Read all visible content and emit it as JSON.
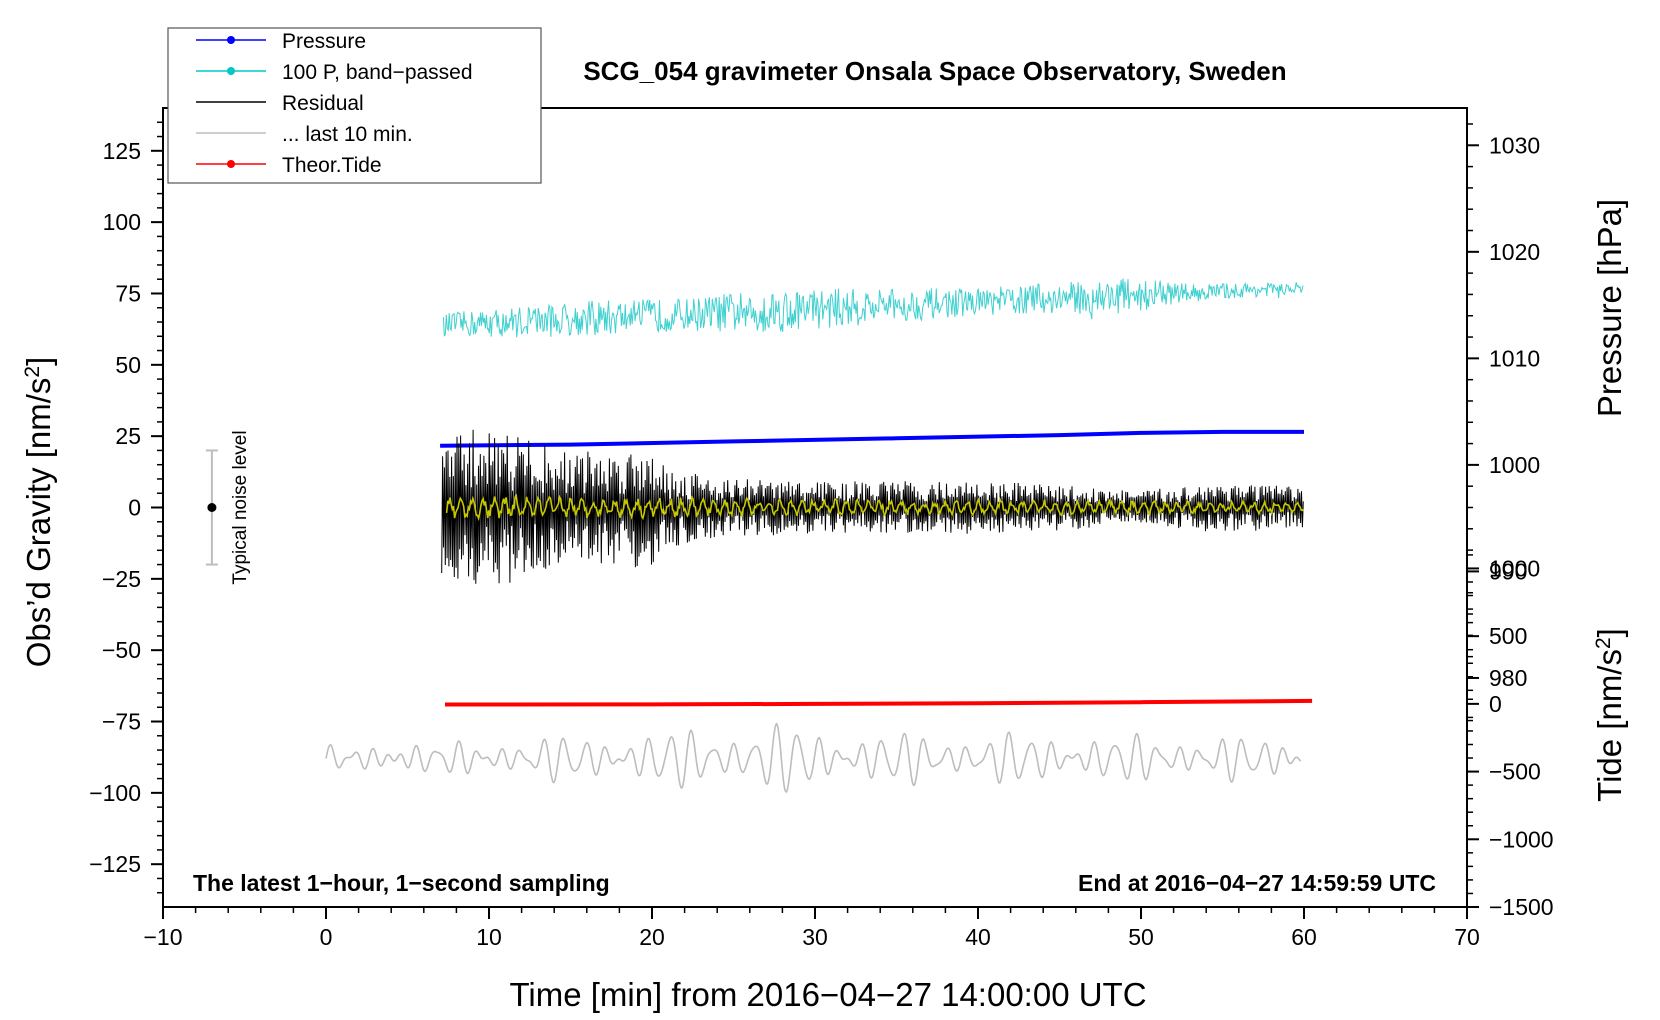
{
  "chart_data": {
    "type": "line",
    "title": "SCG_054 gravimeter Onsala Space Observatory, Sweden",
    "xlabel": "Time [min] from 2016−04−27 14:00:00 UTC",
    "ylabel_left": "Obs’d Gravity [nm/s",
    "ylabel_left_sup": "2",
    "ylabel_left_close": "]",
    "ylabel_right_pressure": "Pressure [hPa]",
    "ylabel_right_tide": "Tide [nm/s",
    "ylabel_right_tide_sup": "2",
    "ylabel_right_tide_close": "]",
    "xlim": [
      -10,
      70
    ],
    "ylim_left": [
      -140,
      140
    ],
    "ylim_pressure": [
      958.5,
      1033.5
    ],
    "ylim_tide": [
      -1500,
      4400
    ],
    "x_ticks": [
      "−10",
      "0",
      "10",
      "20",
      "30",
      "40",
      "50",
      "60",
      "70"
    ],
    "x_tick_values": [
      -10,
      0,
      10,
      20,
      30,
      40,
      50,
      60,
      70
    ],
    "y_left_ticks": [
      "125",
      "100",
      "75",
      "50",
      "25",
      "0",
      "−25",
      "−50",
      "−75",
      "−100",
      "−125"
    ],
    "y_left_tick_values": [
      125,
      100,
      75,
      50,
      25,
      0,
      -25,
      -50,
      -75,
      -100,
      -125
    ],
    "pressure_ticks": [
      "1030",
      "1020",
      "1010",
      "1000",
      "990",
      "980"
    ],
    "pressure_tick_values": [
      1030,
      1020,
      1010,
      1000,
      990,
      980
    ],
    "tide_ticks": [
      "1000",
      "500",
      "0",
      "−500",
      "−1000",
      "−1500"
    ],
    "tide_tick_values": [
      1000,
      500,
      0,
      -500,
      -1000,
      -1500
    ],
    "legend": [
      {
        "label": "Pressure",
        "color": "#0000ff",
        "marker": true
      },
      {
        "label": "100 P, band−passed",
        "color": "#00c8c8",
        "marker": true
      },
      {
        "label": "Residual",
        "color": "#000000",
        "marker": false
      },
      {
        "label": "... last 10 min.",
        "color": "#bdbdbd",
        "marker": false
      },
      {
        "label": "Theor.Tide",
        "color": "#ff0000",
        "marker": true
      }
    ],
    "noise_label": "Typical noise level",
    "noise_bar": {
      "x": -7,
      "center": 0,
      "half_range": 20
    },
    "footer_left": "The latest 1−hour, 1−second sampling",
    "footer_right": "End at 2016−04−27 14:59:59 UTC",
    "series": [
      {
        "name": "Pressure",
        "axis": "pressure",
        "color": "#0000ff",
        "x": [
          7,
          15,
          25,
          35,
          45,
          50,
          55,
          60
        ],
        "values": [
          1001.8,
          1001.9,
          1002.2,
          1002.5,
          1002.8,
          1003.0,
          1003.1,
          1003.1
        ]
      },
      {
        "name": "100 P, band-passed",
        "axis": "left",
        "color": "#40d0d0",
        "x_start": 7.2,
        "x_end": 60,
        "center_start": 64,
        "center_end": 77,
        "amp_env_x": [
          7,
          12,
          17,
          22,
          27,
          33,
          40,
          45,
          49,
          53,
          60
        ],
        "amp_env": [
          5,
          7,
          8,
          7,
          10,
          8,
          6,
          7,
          8,
          4,
          2.5
        ]
      },
      {
        "name": "Residual",
        "axis": "left",
        "color": "#000000",
        "x_start": 7.1,
        "x_end": 60,
        "amp_env_x": [
          7,
          10,
          14,
          18,
          20,
          21,
          25,
          30,
          35,
          40,
          45,
          50,
          55,
          60
        ],
        "amp_env": [
          20,
          26,
          18,
          17,
          20,
          12,
          9,
          8,
          8,
          8,
          7,
          5,
          8,
          6
        ]
      },
      {
        "name": "Residual (smoothed)",
        "axis": "left",
        "color": "#c8c800",
        "x_start": 7.4,
        "x_end": 60,
        "amp_env_x": [
          7,
          15,
          25,
          35,
          45,
          55,
          60
        ],
        "amp_env": [
          4,
          3.5,
          3,
          2.5,
          2.5,
          2,
          2
        ]
      },
      {
        "name": "... last 10 min.",
        "axis": "left",
        "color": "#bdbdbd",
        "x_start": 0,
        "x_end": 59.8,
        "center": -88,
        "amp_env_x": [
          0,
          5,
          10,
          15,
          20,
          25,
          28,
          32,
          40,
          50,
          55,
          59.8
        ],
        "amp_env": [
          3,
          4,
          5,
          7,
          8,
          11,
          11,
          8,
          8,
          7,
          7,
          5
        ]
      },
      {
        "name": "Theor.Tide",
        "axis": "tide",
        "color": "#ff0000",
        "x": [
          7.3,
          20,
          30,
          40,
          50,
          60.5
        ],
        "values": [
          -5,
          -4,
          0,
          5,
          12,
          22
        ]
      }
    ]
  }
}
